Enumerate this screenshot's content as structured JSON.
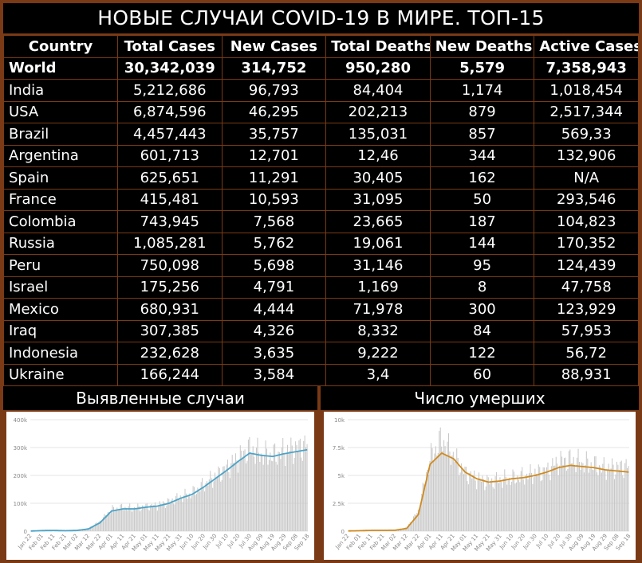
{
  "title": "НОВЫЕ СЛУЧАИ COVID-19 В МИРЕ. ТОП-15",
  "table": {
    "headers": [
      "Country",
      "Total Cases",
      "New Cases",
      "Total Deaths",
      "New Deaths",
      "Active Cases"
    ],
    "rows": [
      [
        "World",
        "30,342,039",
        "314,752",
        "950,280",
        "5,579",
        "7,358,943"
      ],
      [
        "India",
        "5,212,686",
        "96,793",
        "84,404",
        "1,174",
        "1,018,454"
      ],
      [
        "USA",
        "6,874,596",
        "46,295",
        "202,213",
        "879",
        "2,517,344"
      ],
      [
        "Brazil",
        "4,457,443",
        "35,757",
        "135,031",
        "857",
        "569,33"
      ],
      [
        "Argentina",
        "601,713",
        "12,701",
        "12,46",
        "344",
        "132,906"
      ],
      [
        "Spain",
        "625,651",
        "11,291",
        "30,405",
        "162",
        "N/A"
      ],
      [
        "France",
        "415,481",
        "10,593",
        "31,095",
        "50",
        "293,546"
      ],
      [
        "Colombia",
        "743,945",
        "7,568",
        "23,665",
        "187",
        "104,823"
      ],
      [
        "Russia",
        "1,085,281",
        "5,762",
        "19,061",
        "144",
        "170,352"
      ],
      [
        "Peru",
        "750,098",
        "5,698",
        "31,146",
        "95",
        "124,439"
      ],
      [
        "Israel",
        "175,256",
        "4,791",
        "1,169",
        "8",
        "47,758"
      ],
      [
        "Mexico",
        "680,931",
        "4,444",
        "71,978",
        "300",
        "123,929"
      ],
      [
        "Iraq",
        "307,385",
        "4,326",
        "8,332",
        "84",
        "57,953"
      ],
      [
        "Indonesia",
        "232,628",
        "3,635",
        "9,222",
        "122",
        "56,72"
      ],
      [
        "Ukraine",
        "166,244",
        "3,584",
        "3,4",
        "60",
        "88,931"
      ]
    ]
  },
  "panels": {
    "cases_title": "Выявленные случаи",
    "deaths_title": "Число умерших"
  },
  "colors": {
    "frame": "#7a3a15",
    "header_yellow": "#f3ef3a",
    "header_red": "#f08a8a",
    "bar_gray": "#c8c8c8",
    "cases_line": "#4aa3c8",
    "deaths_line": "#d08a1e"
  },
  "chart_data": [
    {
      "type": "bar",
      "title": "Выявленные случаи",
      "x_tick_labels": [
        "Jan 22",
        "Feb 01",
        "Feb 11",
        "Feb 21",
        "Mar 02",
        "Mar 12",
        "Mar 22",
        "Apr 01",
        "Apr 11",
        "Apr 21",
        "May 01",
        "May 11",
        "May 21",
        "May 31",
        "Jun 10",
        "Jun 20",
        "Jun 30",
        "Jul 10",
        "Jul 20",
        "Jul 30",
        "Aug 09",
        "Aug 19",
        "Aug 29",
        "Sep 08",
        "Sep 18"
      ],
      "y_tick_labels": [
        "0",
        "100k",
        "200k",
        "300k",
        "400k"
      ],
      "ylim": [
        0,
        400000
      ],
      "series": [
        {
          "kind": "bar",
          "values_in_thousands_every_10_days": [
            0.6,
            2,
            3,
            1,
            2,
            10,
            35,
            78,
            85,
            82,
            88,
            92,
            105,
            122,
            135,
            165,
            195,
            225,
            260,
            295,
            275,
            270,
            285,
            295,
            310
          ]
        },
        {
          "kind": "line",
          "values_in_thousands_every_10_days": [
            0.5,
            2,
            2.5,
            1.5,
            2.5,
            8,
            30,
            72,
            80,
            80,
            86,
            90,
            100,
            118,
            132,
            158,
            188,
            218,
            250,
            280,
            272,
            268,
            278,
            285,
            292
          ]
        }
      ]
    },
    {
      "type": "bar",
      "title": "Число умерших",
      "x_tick_labels": [
        "Jan 22",
        "Feb 01",
        "Feb 11",
        "Feb 21",
        "Mar 02",
        "Mar 12",
        "Mar 22",
        "Apr 01",
        "Apr 11",
        "Apr 21",
        "May 01",
        "May 11",
        "May 21",
        "May 31",
        "Jun 10",
        "Jun 20",
        "Jun 30",
        "Jul 10",
        "Jul 20",
        "Jul 30",
        "Aug 09",
        "Aug 19",
        "Aug 29",
        "Sep 08",
        "Sep 18"
      ],
      "y_tick_labels": [
        "0",
        "2.5k",
        "5k",
        "7.5k",
        "10k"
      ],
      "ylim": [
        0,
        10000
      ],
      "series": [
        {
          "kind": "bar",
          "values_every_10_days": [
            20,
            50,
            90,
            70,
            80,
            300,
            1800,
            6500,
            8200,
            6800,
            5200,
            4700,
            4400,
            4600,
            4700,
            4900,
            5200,
            5400,
            6200,
            6400,
            6100,
            5900,
            5600,
            5700,
            5800
          ]
        },
        {
          "kind": "line",
          "values_every_10_days": [
            20,
            40,
            70,
            70,
            80,
            250,
            1500,
            6000,
            7000,
            6500,
            5300,
            4700,
            4400,
            4500,
            4700,
            4800,
            5000,
            5300,
            5700,
            5900,
            5800,
            5700,
            5500,
            5400,
            5300
          ]
        }
      ]
    }
  ]
}
